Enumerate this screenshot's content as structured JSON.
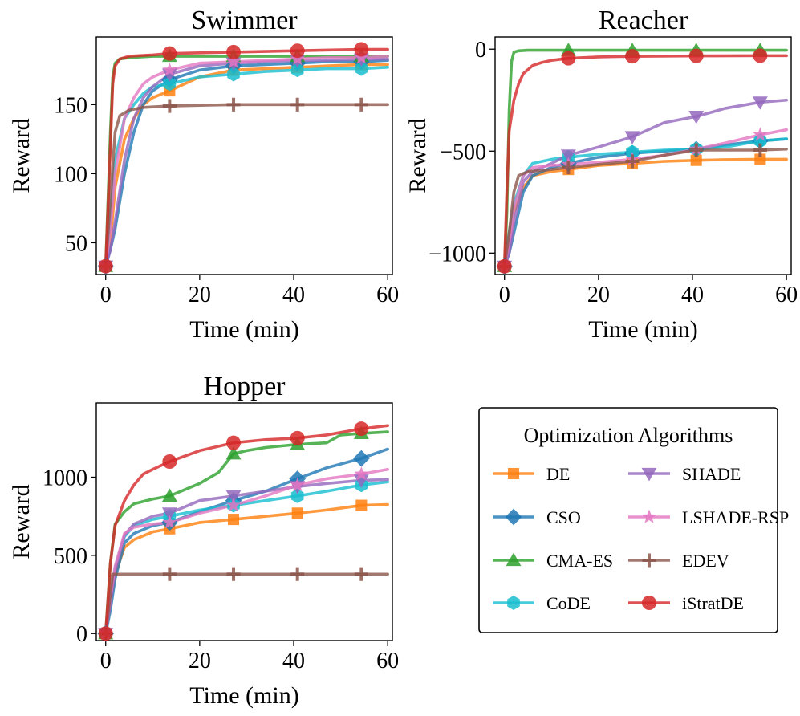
{
  "legend": {
    "title": "Optimization Algorithms",
    "items": [
      {
        "label": "DE",
        "color": "#ff7f0e",
        "marker": "square"
      },
      {
        "label": "SHADE",
        "color": "#9467bd",
        "marker": "triangle-down"
      },
      {
        "label": "CSO",
        "color": "#1f77b4",
        "marker": "diamond"
      },
      {
        "label": "LSHADE-RSP",
        "color": "#e377c2",
        "marker": "star"
      },
      {
        "label": "CMA-ES",
        "color": "#2ca02c",
        "marker": "triangle-up"
      },
      {
        "label": "EDEV",
        "color": "#8c564b",
        "marker": "plus"
      },
      {
        "label": "CoDE",
        "color": "#17becf",
        "marker": "hexagon"
      },
      {
        "label": "iStratDE",
        "color": "#d62728",
        "marker": "circle"
      }
    ]
  },
  "chart_data": [
    {
      "type": "line",
      "title": "Swimmer",
      "xlabel": "Time (min)",
      "ylabel": "Reward",
      "xlim": [
        -2,
        61
      ],
      "ylim": [
        27,
        199
      ],
      "xticks": [
        "0",
        "20",
        "40",
        "60"
      ],
      "xtick_values": [
        0,
        20,
        40,
        60
      ],
      "yticks": [
        "50",
        "100",
        "150"
      ],
      "ytick_values": [
        50,
        100,
        150
      ],
      "marker_x": [
        0,
        13.6,
        27.2,
        40.8,
        54.4
      ],
      "series": [
        {
          "name": "DE",
          "x": [
            0,
            1,
            2,
            4,
            6,
            8,
            10,
            13.6,
            20,
            27.2,
            34,
            40.8,
            47,
            54.4,
            60
          ],
          "y": [
            33,
            50,
            90,
            125,
            140,
            150,
            155,
            160,
            170,
            175,
            176,
            177,
            178,
            179,
            179
          ]
        },
        {
          "name": "CSO",
          "x": [
            0,
            1,
            2,
            4,
            6,
            8,
            10,
            13.6,
            20,
            27.2,
            34,
            40.8,
            47,
            54.4,
            60
          ],
          "y": [
            33,
            45,
            60,
            100,
            130,
            150,
            160,
            168,
            175,
            178,
            179,
            180,
            181,
            181,
            182
          ]
        },
        {
          "name": "CMA-ES",
          "x": [
            0,
            1,
            1.5,
            2,
            3,
            5,
            10,
            13.6,
            27.2,
            40.8,
            54.4,
            60
          ],
          "y": [
            33,
            130,
            170,
            180,
            183,
            184,
            185,
            185,
            185,
            185,
            185,
            185
          ]
        },
        {
          "name": "CoDE",
          "x": [
            0,
            1,
            2,
            4,
            6,
            8,
            10,
            13.6,
            20,
            27.2,
            34,
            40.8,
            47,
            54.4,
            60
          ],
          "y": [
            33,
            70,
            110,
            140,
            150,
            158,
            163,
            165,
            170,
            172,
            174,
            175,
            176,
            176,
            177
          ]
        },
        {
          "name": "SHADE",
          "x": [
            0,
            1,
            2,
            4,
            6,
            8,
            10,
            13.6,
            20,
            27.2,
            34,
            40.8,
            47,
            54.4,
            60
          ],
          "y": [
            33,
            45,
            65,
            110,
            140,
            155,
            163,
            172,
            178,
            180,
            181,
            182,
            182,
            183,
            183
          ]
        },
        {
          "name": "LSHADE-RSP",
          "x": [
            0,
            1,
            2,
            4,
            6,
            8,
            10,
            13.6,
            20,
            27.2,
            34,
            40.8,
            47,
            54.4,
            60
          ],
          "y": [
            33,
            60,
            100,
            140,
            155,
            165,
            170,
            175,
            180,
            181,
            182,
            183,
            184,
            184,
            185
          ]
        },
        {
          "name": "EDEV",
          "x": [
            0,
            1,
            2,
            3,
            5,
            8,
            13.6,
            27.2,
            40.8,
            54.4,
            60
          ],
          "y": [
            33,
            80,
            130,
            142,
            146,
            148,
            149,
            150,
            150,
            150,
            150
          ]
        },
        {
          "name": "iStratDE",
          "x": [
            0,
            1,
            1.5,
            2,
            3,
            5,
            10,
            13.6,
            27.2,
            40.8,
            54.4,
            60
          ],
          "y": [
            33,
            120,
            165,
            178,
            183,
            185,
            186,
            187,
            188,
            189,
            190,
            190
          ]
        }
      ]
    },
    {
      "type": "line",
      "title": "Reacher",
      "xlabel": "Time (min)",
      "ylabel": "Reward",
      "xlim": [
        -2,
        61
      ],
      "ylim": [
        -1105,
        60
      ],
      "xticks": [
        "0",
        "20",
        "40",
        "60"
      ],
      "xtick_values": [
        0,
        20,
        40,
        60
      ],
      "yticks": [
        "0",
        "−500",
        "−1000"
      ],
      "ytick_values": [
        0,
        -500,
        -1000
      ],
      "marker_x": [
        0,
        13.6,
        27.2,
        40.8,
        54.4
      ],
      "series": [
        {
          "name": "DE",
          "x": [
            0,
            1,
            2,
            4,
            6,
            10,
            13.6,
            20,
            27.2,
            34,
            40.8,
            47,
            54.4,
            60
          ],
          "y": [
            -1065,
            -950,
            -800,
            -680,
            -620,
            -600,
            -590,
            -570,
            -560,
            -550,
            -545,
            -542,
            -540,
            -540
          ]
        },
        {
          "name": "CSO",
          "x": [
            0,
            1,
            2,
            4,
            6,
            10,
            13.6,
            20,
            27.2,
            34,
            40.8,
            47,
            54.4,
            60
          ],
          "y": [
            -1065,
            -1000,
            -900,
            -700,
            -620,
            -580,
            -560,
            -530,
            -510,
            -500,
            -490,
            -470,
            -450,
            -440
          ]
        },
        {
          "name": "CMA-ES",
          "x": [
            0,
            0.5,
            1,
            1.5,
            2,
            3,
            5,
            13.6,
            27.2,
            40.8,
            54.4,
            60
          ],
          "y": [
            -1065,
            -800,
            -300,
            -60,
            -15,
            -8,
            -5,
            -5,
            -5,
            -5,
            -5,
            -5
          ]
        },
        {
          "name": "CoDE",
          "x": [
            0,
            1,
            2,
            4,
            6,
            10,
            13.6,
            20,
            27.2,
            34,
            40.8,
            47,
            54.4,
            60
          ],
          "y": [
            -1065,
            -900,
            -760,
            -620,
            -560,
            -540,
            -530,
            -515,
            -505,
            -495,
            -490,
            -480,
            -450,
            -440
          ]
        },
        {
          "name": "SHADE",
          "x": [
            0,
            1,
            2,
            4,
            6,
            10,
            13.6,
            20,
            27.2,
            34,
            40.8,
            47,
            54.4,
            60
          ],
          "y": [
            -1065,
            -1000,
            -850,
            -650,
            -600,
            -560,
            -520,
            -480,
            -430,
            -360,
            -330,
            -290,
            -260,
            -250
          ]
        },
        {
          "name": "LSHADE-RSP",
          "x": [
            0,
            1,
            2,
            4,
            6,
            10,
            13.6,
            20,
            27.2,
            34,
            40.8,
            47,
            54.4,
            60
          ],
          "y": [
            -1065,
            -950,
            -780,
            -620,
            -580,
            -570,
            -565,
            -555,
            -540,
            -520,
            -490,
            -460,
            -420,
            -395
          ]
        },
        {
          "name": "EDEV",
          "x": [
            0,
            1,
            2,
            3,
            5,
            8,
            13.6,
            20,
            27.2,
            34,
            40.8,
            47,
            54.4,
            60
          ],
          "y": [
            -1065,
            -900,
            -700,
            -620,
            -600,
            -595,
            -580,
            -565,
            -550,
            -520,
            -495,
            -495,
            -495,
            -490
          ]
        },
        {
          "name": "iStratDE",
          "x": [
            0,
            0.5,
            1,
            2,
            3,
            4,
            6,
            8,
            10,
            13.6,
            20,
            27.2,
            40.8,
            54.4,
            60
          ],
          "y": [
            -1065,
            -700,
            -400,
            -250,
            -170,
            -120,
            -80,
            -65,
            -55,
            -45,
            -38,
            -35,
            -33,
            -32,
            -32
          ]
        }
      ]
    },
    {
      "type": "line",
      "title": "Hopper",
      "xlabel": "Time (min)",
      "ylabel": "Reward",
      "xlim": [
        -2,
        61
      ],
      "ylim": [
        -45,
        1475
      ],
      "xticks": [
        "0",
        "20",
        "40",
        "60"
      ],
      "xtick_values": [
        0,
        20,
        40,
        60
      ],
      "yticks": [
        "0",
        "500",
        "1000"
      ],
      "ytick_values": [
        0,
        500,
        1000
      ],
      "marker_x": [
        0,
        13.6,
        27.2,
        40.8,
        54.4
      ],
      "series": [
        {
          "name": "DE",
          "x": [
            0,
            1,
            2,
            4,
            6,
            10,
            13.6,
            20,
            27.2,
            34,
            40.8,
            47,
            54.4,
            60
          ],
          "y": [
            0,
            200,
            380,
            550,
            600,
            650,
            670,
            710,
            730,
            750,
            770,
            790,
            820,
            825
          ]
        },
        {
          "name": "CSO",
          "x": [
            0,
            1,
            2,
            4,
            6,
            10,
            13.6,
            20,
            27.2,
            34,
            40.8,
            47,
            54.4,
            60
          ],
          "y": [
            0,
            150,
            350,
            580,
            640,
            690,
            710,
            780,
            850,
            910,
            990,
            1060,
            1120,
            1180
          ]
        },
        {
          "name": "CMA-ES",
          "x": [
            0,
            1,
            2,
            4,
            6,
            10,
            13.6,
            20,
            24,
            27.2,
            30,
            34,
            40.8,
            47,
            50,
            54.4,
            60
          ],
          "y": [
            0,
            450,
            700,
            780,
            830,
            860,
            880,
            960,
            1030,
            1150,
            1170,
            1190,
            1210,
            1220,
            1270,
            1280,
            1290
          ]
        },
        {
          "name": "CoDE",
          "x": [
            0,
            1,
            2,
            4,
            6,
            10,
            13.6,
            20,
            27.2,
            34,
            40.8,
            47,
            54.4,
            60
          ],
          "y": [
            0,
            220,
            420,
            620,
            690,
            730,
            750,
            790,
            820,
            850,
            880,
            910,
            950,
            970
          ]
        },
        {
          "name": "SHADE",
          "x": [
            0,
            1,
            2,
            4,
            6,
            10,
            13.6,
            20,
            27.2,
            34,
            40.8,
            47,
            54.4,
            60
          ],
          "y": [
            0,
            200,
            400,
            630,
            700,
            750,
            770,
            850,
            880,
            910,
            940,
            960,
            980,
            985
          ]
        },
        {
          "name": "LSHADE-RSP",
          "x": [
            0,
            1,
            2,
            4,
            6,
            10,
            13.6,
            20,
            27.2,
            34,
            40.8,
            47,
            54.4,
            60
          ],
          "y": [
            0,
            230,
            430,
            640,
            680,
            700,
            710,
            770,
            820,
            880,
            950,
            990,
            1020,
            1050
          ]
        },
        {
          "name": "EDEV",
          "x": [
            0,
            1,
            1.5,
            3,
            13.6,
            27.2,
            40.8,
            54.4,
            60
          ],
          "y": [
            0,
            250,
            380,
            380,
            380,
            380,
            380,
            380,
            380
          ]
        },
        {
          "name": "iStratDE",
          "x": [
            0,
            1,
            2,
            4,
            6,
            8,
            10,
            13.6,
            20,
            27.2,
            34,
            40.8,
            47,
            54.4,
            60
          ],
          "y": [
            0,
            450,
            690,
            850,
            950,
            1020,
            1050,
            1100,
            1170,
            1220,
            1240,
            1250,
            1270,
            1310,
            1330
          ]
        }
      ]
    }
  ]
}
